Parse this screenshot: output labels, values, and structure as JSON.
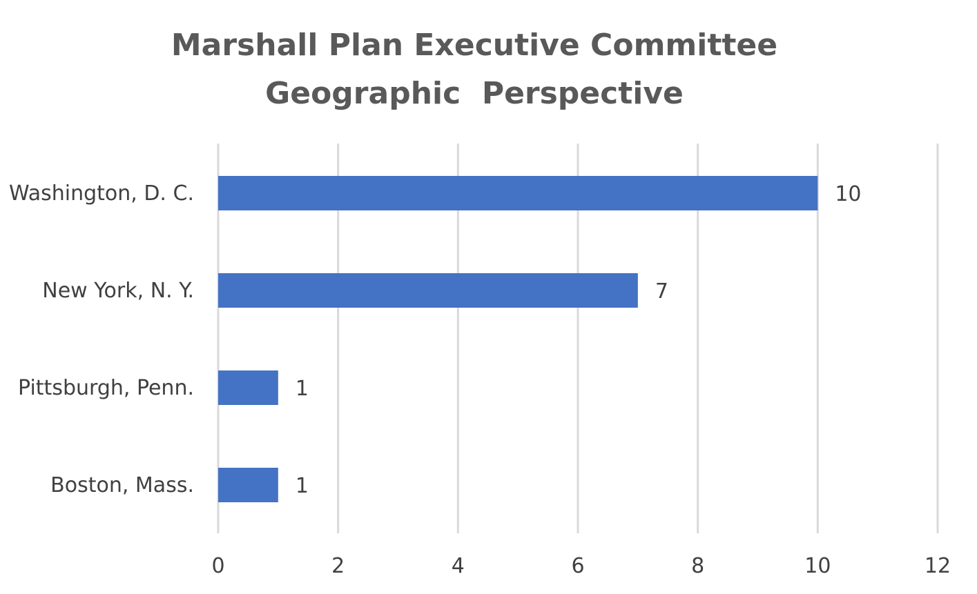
{
  "chart_data": {
    "type": "bar",
    "orientation": "horizontal",
    "title": "Marshall Plan Executive Committee",
    "subtitle": "Geographic  Perspective",
    "categories": [
      "Washington, D. C.",
      "New York, N. Y.",
      "Pittsburgh, Penn.",
      "Boston, Mass."
    ],
    "values": [
      10,
      7,
      1,
      1
    ],
    "x_ticks": [
      "0",
      "2",
      "4",
      "6",
      "8",
      "10",
      "12"
    ],
    "xlim": [
      0,
      12
    ],
    "xlabel": "",
    "ylabel": "",
    "grid": true,
    "data_labels": true,
    "bar_color": "#4472C4",
    "legend": "none"
  }
}
